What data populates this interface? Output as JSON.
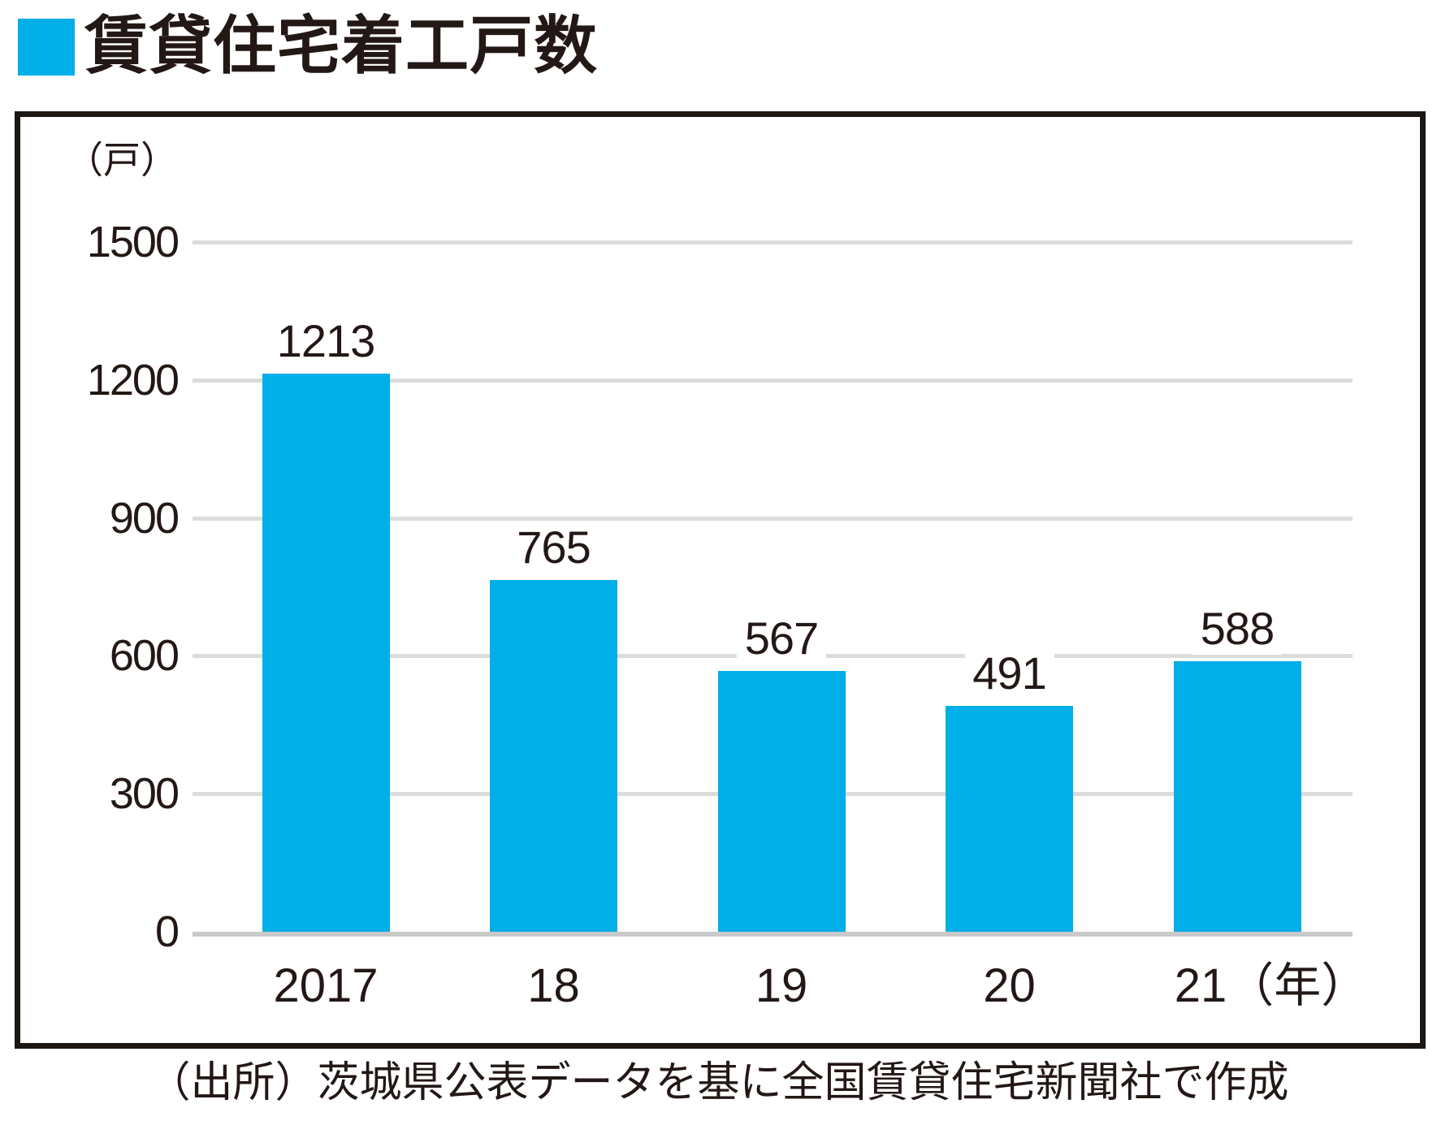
{
  "page": {
    "background": "#ffffff"
  },
  "header": {
    "title": "賃貸住宅着工戸数",
    "marker_color": "#00AEE8"
  },
  "chart_data": {
    "type": "bar",
    "title": "賃貸住宅着工戸数",
    "unit_label": "（戸）",
    "categories": [
      "2017",
      "18",
      "19",
      "20",
      "21"
    ],
    "tick_labels": [
      "2017",
      "18",
      "19",
      "20",
      "21（年）"
    ],
    "values": [
      1213,
      765,
      567,
      491,
      588
    ],
    "value_labels": [
      "1213",
      "765",
      "567",
      "491",
      "588"
    ],
    "ylim": [
      0,
      1500
    ],
    "yticks": [
      0,
      300,
      600,
      900,
      1200,
      1500
    ],
    "ytick_labels": [
      "0",
      "300",
      "600",
      "900",
      "1200",
      "1500"
    ],
    "grid": true,
    "legend": "none",
    "bar_color": "#00AEE8",
    "gridline_color": "#DCDCDC",
    "axis_line_color": "#C9C9C9",
    "text_color": "#231815"
  },
  "source": {
    "text": "（出所）茨城県公表データを基に全国賃貸住宅新聞社で作成"
  }
}
